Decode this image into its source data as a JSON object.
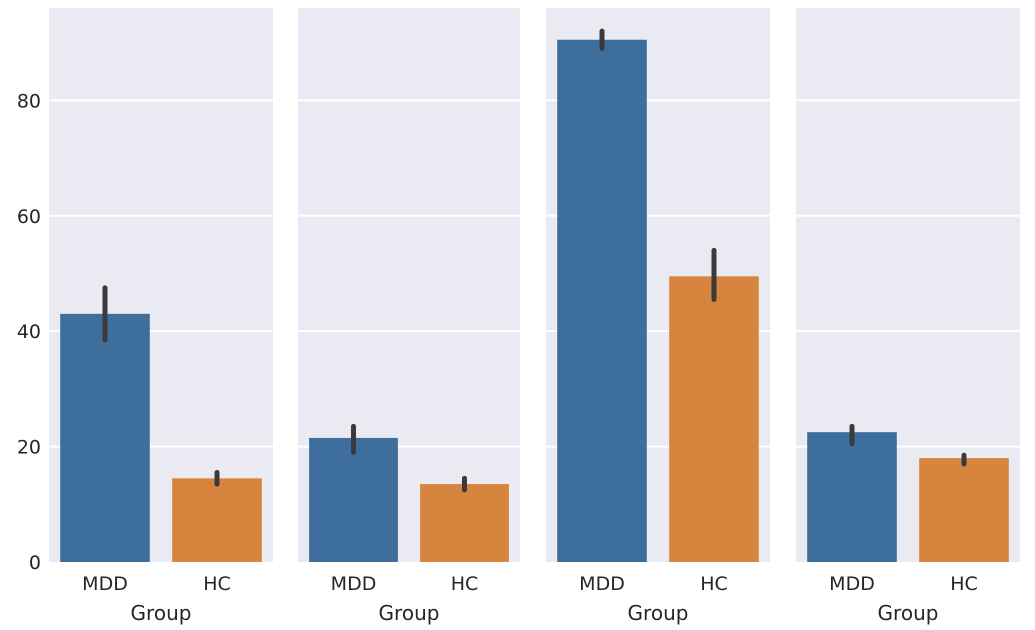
{
  "chart_data": [
    {
      "type": "bar",
      "title": "",
      "xlabel": "Group",
      "ylabel": "",
      "categories": [
        "MDD",
        "HC"
      ],
      "values": [
        43,
        14.5
      ],
      "error_low": [
        38.5,
        13.5
      ],
      "error_high": [
        47.5,
        15.5
      ],
      "ylim": [
        0,
        96
      ],
      "yticks": [
        "0",
        "20",
        "40",
        "60",
        "80"
      ],
      "show_ytick_labels": true
    },
    {
      "type": "bar",
      "title": "",
      "xlabel": "Group",
      "ylabel": "",
      "categories": [
        "MDD",
        "HC"
      ],
      "values": [
        21.5,
        13.5
      ],
      "error_low": [
        19,
        12.5
      ],
      "error_high": [
        23.5,
        14.5
      ],
      "ylim": [
        0,
        96
      ],
      "show_ytick_labels": false
    },
    {
      "type": "bar",
      "title": "",
      "xlabel": "Group",
      "ylabel": "",
      "categories": [
        "MDD",
        "HC"
      ],
      "values": [
        90.5,
        49.5
      ],
      "error_low": [
        89,
        45.5
      ],
      "error_high": [
        92,
        54
      ],
      "ylim": [
        0,
        96
      ],
      "show_ytick_labels": false
    },
    {
      "type": "bar",
      "title": "",
      "xlabel": "Group",
      "ylabel": "",
      "categories": [
        "MDD",
        "HC"
      ],
      "values": [
        22.5,
        18
      ],
      "error_low": [
        20.5,
        17
      ],
      "error_high": [
        23.5,
        18.5
      ],
      "ylim": [
        0,
        96
      ],
      "show_ytick_labels": false
    }
  ],
  "colors": {
    "MDD": "#3e6f9c",
    "HC": "#d6843e",
    "panel_background": "#eaeaf2",
    "grid": "#ffffff",
    "error_bar": "#3a3a3a"
  },
  "style": {
    "grid": true
  }
}
